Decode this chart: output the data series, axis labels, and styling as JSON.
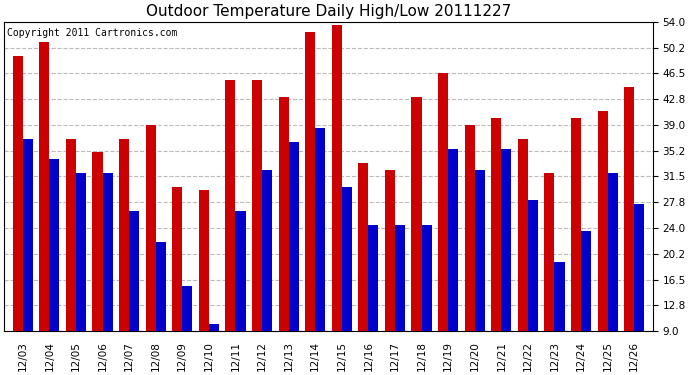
{
  "title": "Outdoor Temperature Daily High/Low 20111227",
  "copyright_text": "Copyright 2011 Cartronics.com",
  "dates": [
    "12/03",
    "12/04",
    "12/05",
    "12/06",
    "12/07",
    "12/08",
    "12/09",
    "12/10",
    "12/11",
    "12/12",
    "12/13",
    "12/14",
    "12/15",
    "12/16",
    "12/17",
    "12/18",
    "12/19",
    "12/20",
    "12/21",
    "12/22",
    "12/23",
    "12/24",
    "12/25",
    "12/26"
  ],
  "highs": [
    49.0,
    51.0,
    37.0,
    35.0,
    37.0,
    39.0,
    30.0,
    29.5,
    45.5,
    45.5,
    43.0,
    52.5,
    53.5,
    33.5,
    32.5,
    43.0,
    46.5,
    39.0,
    40.0,
    37.0,
    32.0,
    40.0,
    41.0,
    44.5
  ],
  "lows": [
    37.0,
    34.0,
    32.0,
    32.0,
    26.5,
    22.0,
    15.5,
    10.0,
    26.5,
    32.5,
    36.5,
    38.5,
    30.0,
    24.5,
    24.5,
    24.5,
    35.5,
    32.5,
    35.5,
    28.0,
    19.0,
    23.5,
    32.0,
    27.5
  ],
  "high_color": "#cc0000",
  "low_color": "#0000cc",
  "ymin": 9.0,
  "ymax": 54.0,
  "yticks": [
    9.0,
    12.8,
    16.5,
    20.2,
    24.0,
    27.8,
    31.5,
    35.2,
    39.0,
    42.8,
    46.5,
    50.2,
    54.0
  ],
  "background_color": "#ffffff",
  "grid_color": "#bbbbbb",
  "title_fontsize": 11,
  "copyright_fontsize": 7,
  "bar_width": 0.38
}
